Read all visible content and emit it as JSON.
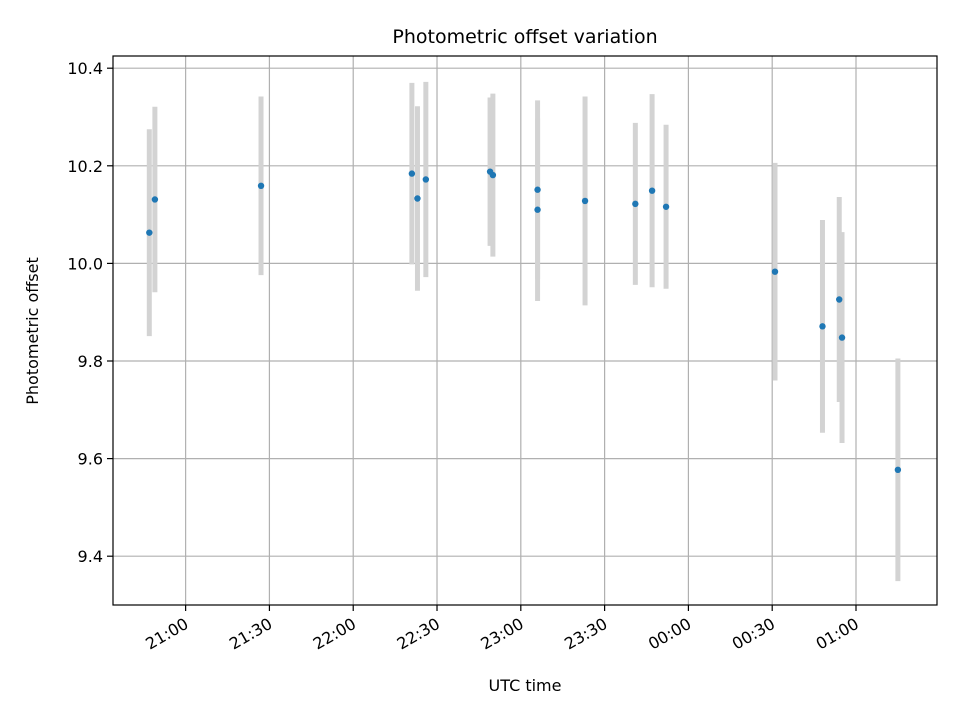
{
  "chart_data": {
    "type": "scatter",
    "title": "Photometric offset variation",
    "xlabel": "UTC time",
    "ylabel": "Photometric offset",
    "x_tick_labels": [
      "21:00",
      "21:30",
      "22:00",
      "22:30",
      "23:00",
      "23:30",
      "00:00",
      "00:30",
      "01:00"
    ],
    "x_tick_times": [
      "2000-01-01T21:00",
      "2000-01-01T21:30",
      "2000-01-01T22:00",
      "2000-01-01T22:30",
      "2000-01-01T23:00",
      "2000-01-01T23:30",
      "2000-01-02T00:00",
      "2000-01-02T00:30",
      "2000-01-02T01:00"
    ],
    "xlim": [
      "2000-01-01T20:34",
      "2000-01-02T01:29"
    ],
    "ylim": [
      9.3,
      10.425
    ],
    "y_ticks": [
      9.4,
      9.6,
      9.8,
      10.0,
      10.2,
      10.4
    ],
    "y_tick_labels": [
      "9.4",
      "9.6",
      "9.8",
      "10.0",
      "10.2",
      "10.4"
    ],
    "grid": true,
    "colors": {
      "point": "#1f77b4",
      "errorbar": "#d3d3d3",
      "grid": "#b0b0b0"
    },
    "points": [
      {
        "t": "2000-01-01T20:47",
        "y": 10.063,
        "err": 0.212
      },
      {
        "t": "2000-01-01T20:49",
        "y": 10.131,
        "err": 0.19
      },
      {
        "t": "2000-01-01T21:27",
        "y": 10.159,
        "err": 0.183
      },
      {
        "t": "2000-01-01T22:21",
        "y": 10.184,
        "err": 0.186
      },
      {
        "t": "2000-01-01T22:23",
        "y": 10.133,
        "err": 0.189
      },
      {
        "t": "2000-01-01T22:26",
        "y": 10.172,
        "err": 0.2
      },
      {
        "t": "2000-01-01T22:49",
        "y": 10.188,
        "err": 0.152
      },
      {
        "t": "2000-01-01T22:50",
        "y": 10.181,
        "err": 0.167
      },
      {
        "t": "2000-01-01T23:06",
        "y": 10.11,
        "err": 0.187
      },
      {
        "t": "2000-01-01T23:06",
        "y": 10.151,
        "err": 0.183
      },
      {
        "t": "2000-01-01T23:23",
        "y": 10.128,
        "err": 0.214
      },
      {
        "t": "2000-01-01T23:41",
        "y": 10.122,
        "err": 0.166
      },
      {
        "t": "2000-01-01T23:47",
        "y": 10.149,
        "err": 0.198
      },
      {
        "t": "2000-01-01T23:52",
        "y": 10.116,
        "err": 0.168
      },
      {
        "t": "2000-01-02T00:31",
        "y": 9.983,
        "err": 0.223
      },
      {
        "t": "2000-01-02T00:48",
        "y": 9.871,
        "err": 0.218
      },
      {
        "t": "2000-01-02T00:54",
        "y": 9.926,
        "err": 0.21
      },
      {
        "t": "2000-01-02T00:55",
        "y": 9.848,
        "err": 0.216
      },
      {
        "t": "2000-01-02T01:15",
        "y": 9.577,
        "err": 0.228
      }
    ]
  }
}
